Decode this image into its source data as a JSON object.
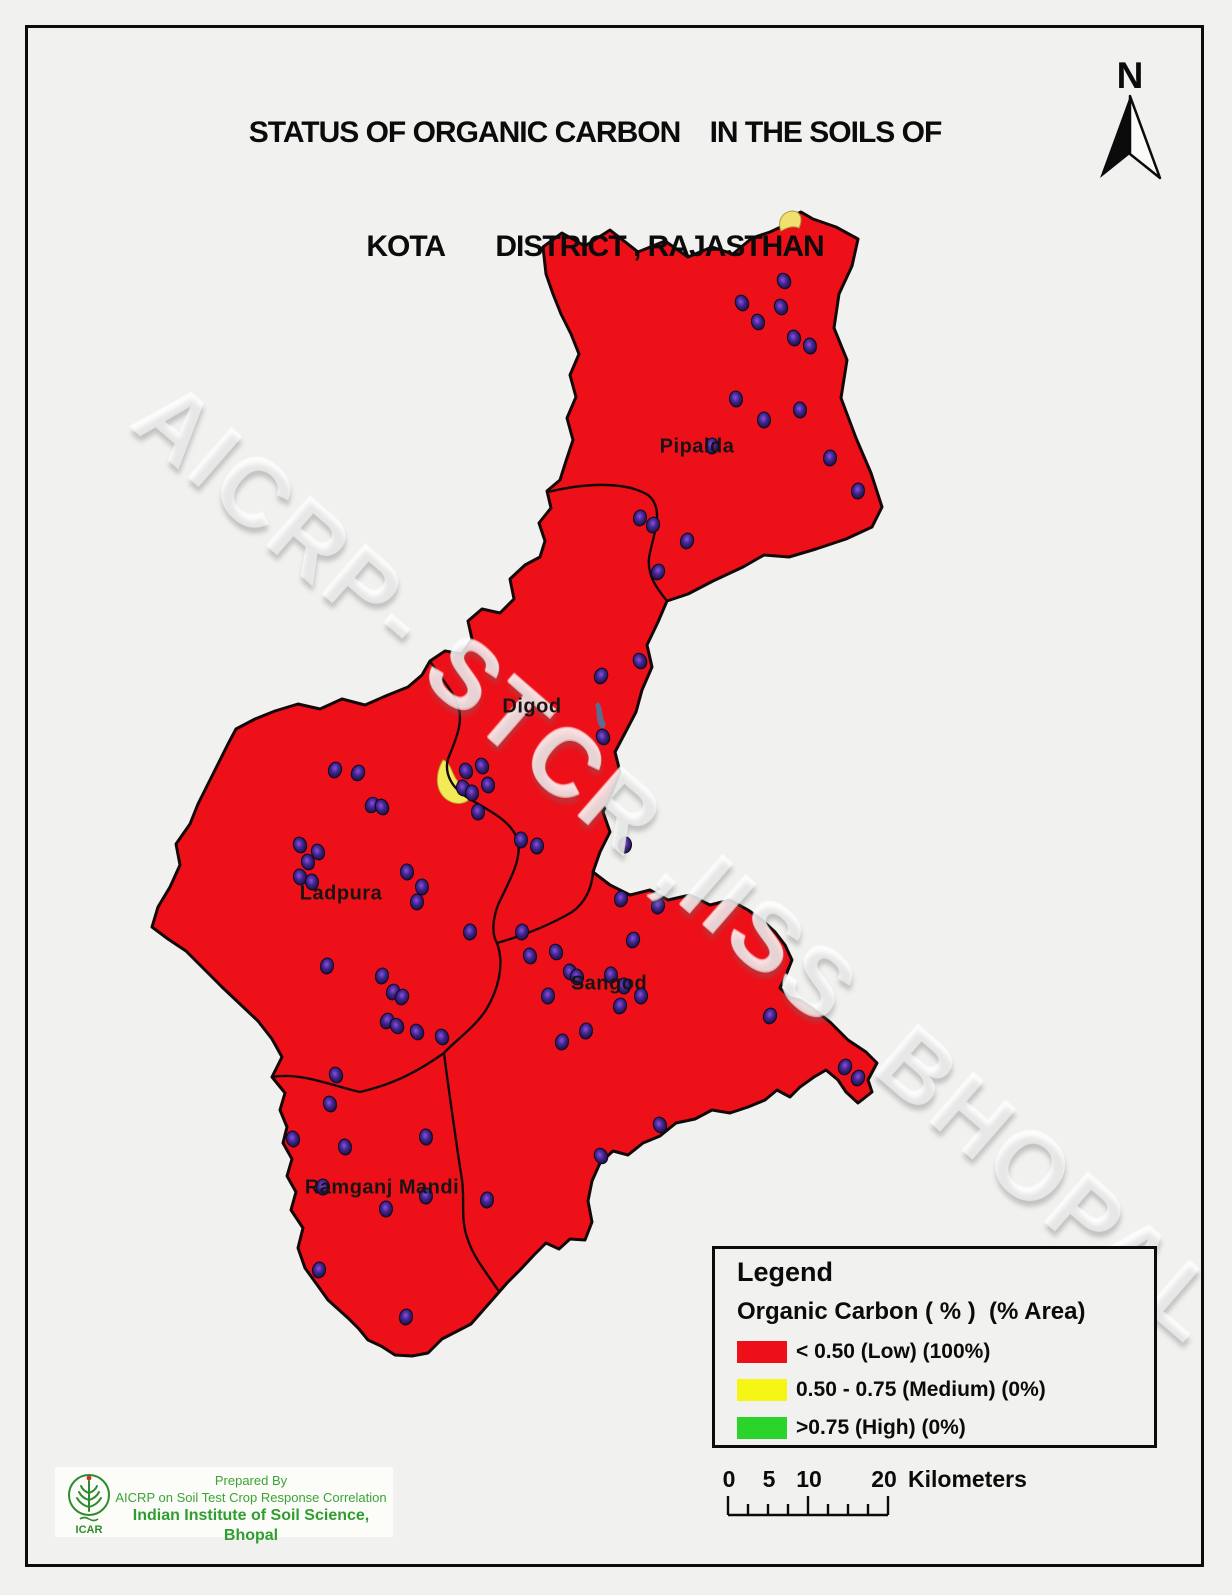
{
  "title": {
    "line1": "STATUS OF ORGANIC CARBON    IN THE SOILS OF",
    "line2": "KOTA       DISTRICT , RAJASTHAN"
  },
  "north_arrow": {
    "label": "N"
  },
  "watermark": {
    "text": "AICRP- STCR ,IISS  BHOPAL"
  },
  "map": {
    "district": "Kota",
    "state": "Rajasthan",
    "region_fill": "#ee1018",
    "boundary_color": "#150808",
    "sample_point_color": "#1b1038",
    "medium_patch_color": "#f2e26a",
    "tehsils": [
      {
        "name": "Pipalda"
      },
      {
        "name": "Digod"
      },
      {
        "name": "Ladpura"
      },
      {
        "name": "Sangod"
      },
      {
        "name": "Ramganj Mandi"
      }
    ]
  },
  "legend": {
    "title": "Legend",
    "subtitle": "Organic Carbon ( % )  (% Area)",
    "entries": [
      {
        "label": "< 0.50 (Low) (100%)",
        "color": "#ee1018"
      },
      {
        "label": "0.50 - 0.75 (Medium) (0%)",
        "color": "#f6f616"
      },
      {
        "label": ">0.75 (High) (0%)",
        "color": "#2bd42b"
      }
    ]
  },
  "scale_bar": {
    "tick_labels": [
      "0",
      "5",
      "10",
      "20"
    ],
    "unit": "Kilometers"
  },
  "credits": {
    "prepared_by": "Prepared By",
    "org_line": "AICRP on Soil Test Crop Response Correlation",
    "institute_line": "Indian Institute of Soil Science, Bhopal",
    "logo_label": "ICAR"
  }
}
